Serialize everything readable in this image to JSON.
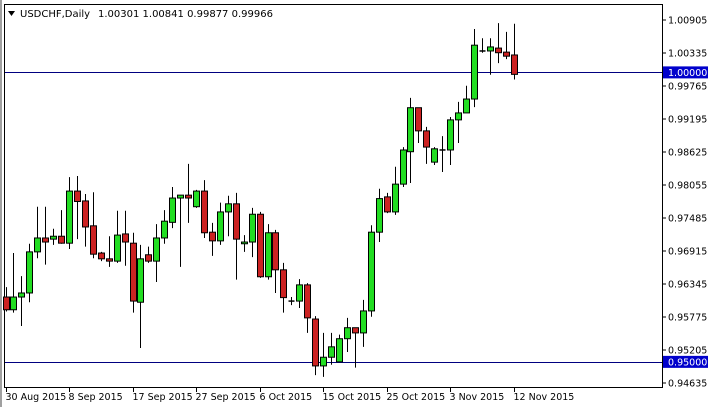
{
  "header": {
    "symbol_timeframe": "USDCHF,Daily",
    "ohlc": "1.00301 1.00841 0.99877 0.99966"
  },
  "chart_data": {
    "type": "candlestick",
    "title": "USDCHF,Daily",
    "colors": {
      "bull": "#22dd22",
      "bear": "#cc2222",
      "outline": "#000000",
      "hline": "#000080",
      "price_label_bg": "#0000cc"
    },
    "ylim": [
      0.94635,
      1.00905
    ],
    "y_ticks": [
      "1.00905",
      "1.00335",
      "0.99765",
      "0.99195",
      "0.98625",
      "0.98055",
      "0.97485",
      "0.96915",
      "0.96345",
      "0.95775",
      "0.95205",
      "0.94635"
    ],
    "horizontal_lines": [
      {
        "price": 1.0,
        "label": "1.00000"
      },
      {
        "price": 0.95,
        "label": "0.95000"
      }
    ],
    "x_tick_labels": [
      {
        "bar": 0,
        "label": "30 Aug 2015"
      },
      {
        "bar": 8,
        "label": "8 Sep 2015"
      },
      {
        "bar": 16,
        "label": "17 Sep 2015"
      },
      {
        "bar": 24,
        "label": "27 Sep 2015"
      },
      {
        "bar": 32,
        "label": "6 Oct 2015"
      },
      {
        "bar": 40,
        "label": "15 Oct 2015"
      },
      {
        "bar": 48,
        "label": "25 Oct 2015"
      },
      {
        "bar": 56,
        "label": "3 Nov 2015"
      },
      {
        "bar": 64,
        "label": "12 Nov 2015"
      }
    ],
    "ohlc": [
      [
        0.9612,
        0.9629,
        0.9587,
        0.959
      ],
      [
        0.959,
        0.9688,
        0.9585,
        0.9612
      ],
      [
        0.9612,
        0.9648,
        0.9562,
        0.9619
      ],
      [
        0.9619,
        0.9704,
        0.9603,
        0.969
      ],
      [
        0.969,
        0.9768,
        0.9679,
        0.9714
      ],
      [
        0.9714,
        0.9768,
        0.9668,
        0.9707
      ],
      [
        0.9712,
        0.973,
        0.9702,
        0.9717
      ],
      [
        0.9717,
        0.9762,
        0.9704,
        0.9705
      ],
      [
        0.9705,
        0.9819,
        0.9695,
        0.9795
      ],
      [
        0.9795,
        0.9821,
        0.9712,
        0.9777
      ],
      [
        0.9778,
        0.979,
        0.9699,
        0.9733
      ],
      [
        0.9735,
        0.9793,
        0.9679,
        0.9686
      ],
      [
        0.9688,
        0.969,
        0.9674,
        0.9678
      ],
      [
        0.9678,
        0.9717,
        0.9664,
        0.9674
      ],
      [
        0.9674,
        0.9761,
        0.9671,
        0.9719
      ],
      [
        0.9721,
        0.9761,
        0.9666,
        0.9707
      ],
      [
        0.9705,
        0.9723,
        0.9585,
        0.9605
      ],
      [
        0.9603,
        0.9702,
        0.9524,
        0.9678
      ],
      [
        0.9685,
        0.9699,
        0.9671,
        0.9674
      ],
      [
        0.9674,
        0.9738,
        0.9638,
        0.9714
      ],
      [
        0.9714,
        0.9762,
        0.9704,
        0.9743
      ],
      [
        0.9741,
        0.9802,
        0.9731,
        0.9783
      ],
      [
        0.9783,
        0.9788,
        0.9664,
        0.9788
      ],
      [
        0.9788,
        0.9842,
        0.974,
        0.9783
      ],
      [
        0.9768,
        0.9797,
        0.9766,
        0.9795
      ],
      [
        0.9795,
        0.9814,
        0.9714,
        0.9723
      ],
      [
        0.9724,
        0.974,
        0.9683,
        0.9709
      ],
      [
        0.9709,
        0.9775,
        0.9702,
        0.9759
      ],
      [
        0.9759,
        0.9787,
        0.9717,
        0.9773
      ],
      [
        0.9773,
        0.9792,
        0.9642,
        0.9712
      ],
      [
        0.9704,
        0.9719,
        0.969,
        0.9707
      ],
      [
        0.9707,
        0.9766,
        0.9681,
        0.9755
      ],
      [
        0.9755,
        0.9759,
        0.9645,
        0.9647
      ],
      [
        0.9647,
        0.9738,
        0.9642,
        0.9723
      ],
      [
        0.9723,
        0.9728,
        0.9619,
        0.9659
      ],
      [
        0.9659,
        0.9671,
        0.9585,
        0.9611
      ],
      [
        0.9605,
        0.9612,
        0.9598,
        0.9605
      ],
      [
        0.9605,
        0.9643,
        0.9593,
        0.9633
      ],
      [
        0.9633,
        0.9636,
        0.955,
        0.9576
      ],
      [
        0.9574,
        0.9579,
        0.9477,
        0.9493
      ],
      [
        0.9493,
        0.955,
        0.9474,
        0.9508
      ],
      [
        0.9508,
        0.955,
        0.9495,
        0.9526
      ],
      [
        0.95,
        0.9547,
        0.95,
        0.954
      ],
      [
        0.954,
        0.9576,
        0.9517,
        0.9559
      ],
      [
        0.9559,
        0.9559,
        0.949,
        0.955
      ],
      [
        0.955,
        0.9607,
        0.9526,
        0.9588
      ],
      [
        0.9588,
        0.9736,
        0.9578,
        0.9724
      ],
      [
        0.9724,
        0.9799,
        0.9707,
        0.9782
      ],
      [
        0.9785,
        0.9792,
        0.9757,
        0.9759
      ],
      [
        0.9759,
        0.9837,
        0.9754,
        0.9807
      ],
      [
        0.9807,
        0.9871,
        0.9802,
        0.9866
      ],
      [
        0.9863,
        0.9956,
        0.9809,
        0.9939
      ],
      [
        0.9939,
        0.9939,
        0.9878,
        0.9899
      ],
      [
        0.9899,
        0.9906,
        0.9842,
        0.9871
      ],
      [
        0.9845,
        0.9871,
        0.984,
        0.9868
      ],
      [
        0.9866,
        0.989,
        0.9828,
        0.9866
      ],
      [
        0.9866,
        0.9923,
        0.984,
        0.9918
      ],
      [
        0.9918,
        0.9949,
        0.9878,
        0.993
      ],
      [
        0.993,
        0.9977,
        0.993,
        0.9954
      ],
      [
        0.9954,
        1.0075,
        0.994,
        1.0047
      ],
      [
        1.0037,
        1.0059,
        1.0034,
        1.0037
      ],
      [
        1.0037,
        1.0059,
        0.9996,
        1.0044
      ],
      [
        1.0042,
        1.0085,
        1.0016,
        1.0034
      ],
      [
        1.0035,
        1.007,
        1.0023,
        1.0028
      ],
      [
        1.00301,
        1.00841,
        0.99877,
        0.99966
      ]
    ]
  }
}
